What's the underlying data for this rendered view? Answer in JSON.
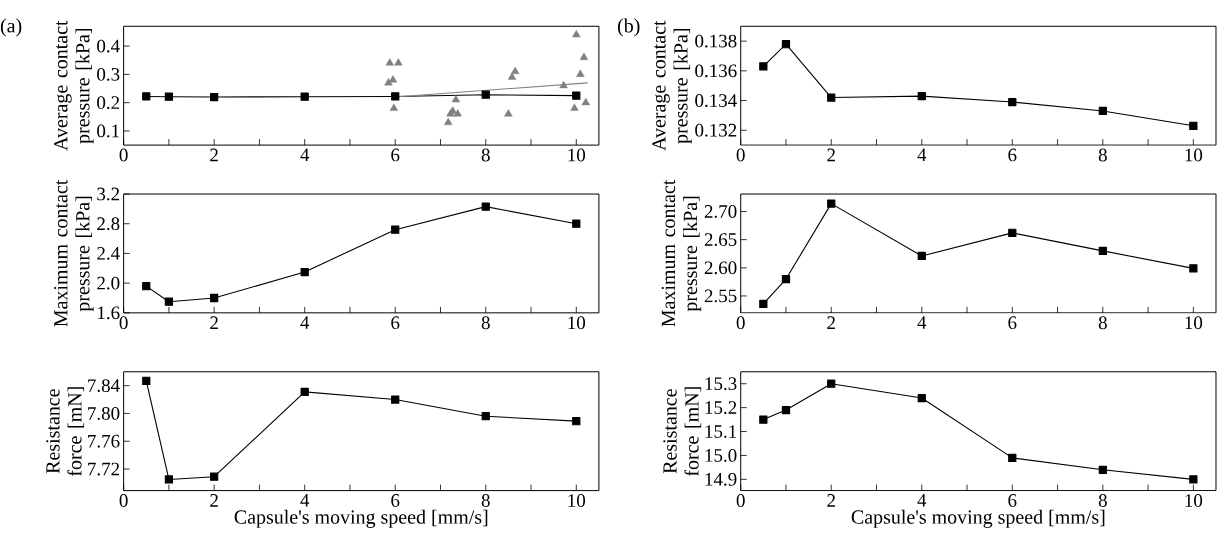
{
  "chart_data": [
    {
      "type": "line",
      "ylabel": "Average contact pressure [kPa]",
      "annotations": [
        "(a)"
      ],
      "marker": "square",
      "x": [
        0.5,
        1,
        2,
        4,
        6,
        8,
        10
      ],
      "xlim": [
        0,
        10.5
      ],
      "xticks": [
        0,
        {
          "value": 1,
          "label": null
        },
        2,
        {
          "value": 3,
          "label": null
        },
        4,
        {
          "value": 5,
          "label": null
        },
        6,
        {
          "value": 7,
          "label": null
        },
        8,
        {
          "value": 9,
          "label": null
        },
        10
      ],
      "ylim": [
        0.05,
        0.47
      ],
      "yticks": [
        0.1,
        0.2,
        0.3,
        0.4
      ],
      "series": [
        {
          "color": "#000000",
          "values": [
            0.222,
            0.221,
            0.22,
            0.221,
            0.222,
            0.228,
            0.225
          ]
        },
        {
          "type": "scatter",
          "marker": "triangle",
          "color": "#808080",
          "x": [
            5.85,
            5.88,
            5.95,
            5.97,
            6.07,
            7.17,
            7.22,
            7.27,
            7.34,
            7.38,
            8.5,
            8.58,
            8.65,
            9.72,
            9.96,
            10.0,
            10.09,
            10.17,
            10.21
          ],
          "values": [
            0.27,
            0.34,
            0.28,
            0.18,
            0.34,
            0.13,
            0.16,
            0.17,
            0.21,
            0.16,
            0.16,
            0.29,
            0.31,
            0.26,
            0.18,
            0.44,
            0.3,
            0.36,
            0.2
          ]
        },
        {
          "type": "line",
          "marker": "none",
          "color": "#808080",
          "x": [
            6,
            10.25
          ],
          "values": [
            0.22,
            0.27
          ]
        }
      ]
    },
    {
      "type": "line",
      "ylabel": "Average contact pressure [kPa]",
      "annotations": [
        "(b)"
      ],
      "marker": "square",
      "x": [
        0.5,
        1,
        2,
        4,
        6,
        8,
        10
      ],
      "xlim": [
        0,
        10.5
      ],
      "xticks": [
        0,
        {
          "value": 1,
          "label": null
        },
        2,
        {
          "value": 3,
          "label": null
        },
        4,
        {
          "value": 5,
          "label": null
        },
        6,
        {
          "value": 7,
          "label": null
        },
        8,
        {
          "value": 9,
          "label": null
        },
        10
      ],
      "ylim": [
        0.131,
        0.139
      ],
      "yticks": [
        0.132,
        0.134,
        0.136,
        0.138
      ],
      "series": [
        {
          "color": "#000000",
          "values": [
            0.1363,
            0.1378,
            0.1342,
            0.1343,
            0.1339,
            0.1333,
            0.1323
          ]
        }
      ]
    },
    {
      "type": "line",
      "ylabel": "Maximum contact pressure [kPa]",
      "marker": "square",
      "x": [
        0.5,
        1,
        2,
        4,
        6,
        8,
        10
      ],
      "xlim": [
        0,
        10.5
      ],
      "xticks": [
        0,
        {
          "value": 1,
          "label": null
        },
        2,
        {
          "value": 3,
          "label": null
        },
        4,
        {
          "value": 5,
          "label": null
        },
        6,
        {
          "value": 7,
          "label": null
        },
        8,
        {
          "value": 9,
          "label": null
        },
        10
      ],
      "ylim": [
        1.6,
        3.2
      ],
      "yticks": [
        1.6,
        {
          "value": 2,
          "label": "2.0"
        },
        2.4,
        2.8,
        3.2
      ],
      "series": [
        {
          "color": "#000000",
          "values": [
            1.96,
            1.75,
            1.8,
            2.15,
            2.72,
            3.03,
            2.8
          ]
        }
      ]
    },
    {
      "type": "line",
      "ylabel": "Maximum contact pressure [kPa]",
      "marker": "square",
      "x": [
        0.5,
        1,
        2,
        4,
        6,
        8,
        10
      ],
      "xlim": [
        0,
        10.5
      ],
      "xticks": [
        0,
        {
          "value": 1,
          "label": null
        },
        2,
        {
          "value": 3,
          "label": null
        },
        4,
        {
          "value": 5,
          "label": null
        },
        6,
        {
          "value": 7,
          "label": null
        },
        8,
        {
          "value": 9,
          "label": null
        },
        10
      ],
      "ylim": [
        2.52,
        2.731
      ],
      "yticks": [
        2.55,
        {
          "value": 2.6,
          "label": "2.60"
        },
        2.65,
        {
          "value": 2.7,
          "label": "2.70"
        }
      ],
      "series": [
        {
          "color": "#000000",
          "values": [
            2.536,
            2.58,
            2.714,
            2.621,
            2.662,
            2.63,
            2.599
          ]
        }
      ]
    },
    {
      "type": "line",
      "xlabel": "Capsule's moving speed [mm/s]",
      "ylabel": "Resistance force [mN]",
      "marker": "square",
      "x": [
        0.5,
        1,
        2,
        4,
        6,
        8,
        10
      ],
      "xlim": [
        0,
        10.5
      ],
      "xticks": [
        0,
        {
          "value": 1,
          "label": null
        },
        2,
        {
          "value": 3,
          "label": null
        },
        4,
        {
          "value": 5,
          "label": null
        },
        6,
        {
          "value": 7,
          "label": null
        },
        8,
        {
          "value": 9,
          "label": null
        },
        10
      ],
      "ylim": [
        7.689,
        7.86
      ],
      "yticks": [
        7.72,
        7.76,
        {
          "value": 7.8,
          "label": "7.80"
        },
        7.84
      ],
      "series": [
        {
          "color": "#000000",
          "values": [
            7.847,
            7.705,
            7.709,
            7.831,
            7.82,
            7.796,
            7.789
          ]
        }
      ]
    },
    {
      "type": "line",
      "xlabel": "Capsule's moving speed [mm/s]",
      "ylabel": "Resistance force [mN]",
      "marker": "square",
      "x": [
        0.5,
        1,
        2,
        4,
        6,
        8,
        10
      ],
      "xlim": [
        0,
        10.5
      ],
      "xticks": [
        0,
        {
          "value": 1,
          "label": null
        },
        2,
        {
          "value": 3,
          "label": null
        },
        4,
        {
          "value": 5,
          "label": null
        },
        6,
        {
          "value": 7,
          "label": null
        },
        8,
        {
          "value": 9,
          "label": null
        },
        10
      ],
      "ylim": [
        14.853,
        15.35
      ],
      "yticks": [
        14.9,
        {
          "value": 15,
          "label": "15.0"
        },
        15.1,
        15.2,
        15.3
      ],
      "series": [
        {
          "color": "#000000",
          "values": [
            15.15,
            15.19,
            15.3,
            15.24,
            14.99,
            14.94,
            14.9
          ]
        }
      ]
    }
  ]
}
